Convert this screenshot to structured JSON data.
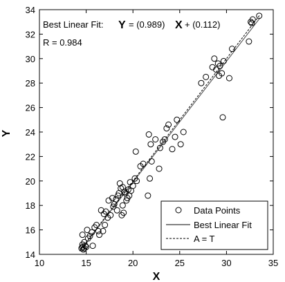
{
  "chart_data": {
    "type": "scatter",
    "xlabel": "X",
    "ylabel": "Y",
    "xlim": [
      10,
      35
    ],
    "ylim": [
      14,
      34
    ],
    "xticks": [
      "10",
      "15",
      "20",
      "25",
      "30",
      "35"
    ],
    "yticks": [
      "14",
      "16",
      "18",
      "20",
      "22",
      "24",
      "26",
      "28",
      "30",
      "32",
      "34"
    ],
    "annotation": {
      "fit_prefix": "Best Linear Fit:",
      "fit_y": "Y",
      "fit_eq1": "= (0.989)",
      "fit_x": "X",
      "fit_eq2": "+ (0.112)",
      "r_text": "R = 0.984"
    },
    "fit": {
      "slope": 0.989,
      "intercept": 0.112
    },
    "legend": {
      "position": "bottom-right",
      "entries": [
        "Data Points",
        "Best Linear Fit",
        "A = T"
      ]
    },
    "series": [
      {
        "name": "Data Points",
        "points": [
          [
            14.5,
            14.5
          ],
          [
            14.6,
            14.6
          ],
          [
            14.7,
            14.4
          ],
          [
            14.8,
            14.5
          ],
          [
            14.6,
            14.8
          ],
          [
            14.9,
            14.7
          ],
          [
            15.0,
            14.6
          ],
          [
            14.8,
            15.0
          ],
          [
            15.2,
            15.3
          ],
          [
            14.6,
            15.6
          ],
          [
            15.4,
            15.5
          ],
          [
            15.1,
            16.0
          ],
          [
            15.6,
            15.8
          ],
          [
            15.9,
            16.2
          ],
          [
            16.1,
            16.4
          ],
          [
            16.3,
            15.9
          ],
          [
            15.7,
            14.7
          ],
          [
            16.8,
            15.9
          ],
          [
            17.0,
            16.4
          ],
          [
            16.9,
            17.3
          ],
          [
            17.1,
            17.5
          ],
          [
            17.3,
            17.0
          ],
          [
            17.6,
            17.2
          ],
          [
            17.9,
            17.9
          ],
          [
            18.0,
            18.1
          ],
          [
            18.2,
            18.5
          ],
          [
            17.8,
            18.6
          ],
          [
            18.4,
            18.8
          ],
          [
            18.5,
            19.0
          ],
          [
            18.7,
            19.4
          ],
          [
            18.6,
            19.8
          ],
          [
            18.9,
            19.5
          ],
          [
            19.1,
            19.1
          ],
          [
            19.3,
            18.4
          ],
          [
            19.5,
            19.3
          ],
          [
            19.6,
            18.8
          ],
          [
            19.8,
            19.2
          ],
          [
            20.0,
            19.6
          ],
          [
            20.2,
            20.2
          ],
          [
            20.4,
            20.0
          ],
          [
            19.4,
            18.6
          ],
          [
            18.3,
            17.6
          ],
          [
            18.8,
            17.2
          ],
          [
            18.9,
            18.0
          ],
          [
            19.0,
            17.4
          ],
          [
            19.2,
            19.0
          ],
          [
            19.7,
            19.9
          ],
          [
            20.3,
            22.4
          ],
          [
            20.8,
            21.2
          ],
          [
            21.1,
            21.4
          ],
          [
            21.6,
            18.8
          ],
          [
            21.8,
            20.2
          ],
          [
            22.0,
            21.6
          ],
          [
            21.9,
            23.0
          ],
          [
            21.7,
            23.8
          ],
          [
            22.4,
            23.4
          ],
          [
            22.9,
            22.7
          ],
          [
            23.2,
            23.2
          ],
          [
            23.4,
            23.4
          ],
          [
            23.6,
            24.3
          ],
          [
            23.8,
            24.6
          ],
          [
            24.2,
            22.6
          ],
          [
            24.5,
            23.6
          ],
          [
            24.7,
            25.0
          ],
          [
            25.1,
            23.0
          ],
          [
            25.4,
            24.0
          ],
          [
            27.3,
            28.0
          ],
          [
            27.8,
            28.5
          ],
          [
            28.5,
            29.3
          ],
          [
            28.7,
            30.0
          ],
          [
            28.9,
            29.1
          ],
          [
            29.1,
            29.6
          ],
          [
            29.3,
            29.4
          ],
          [
            29.5,
            28.8
          ],
          [
            29.2,
            28.6
          ],
          [
            29.7,
            29.8
          ],
          [
            29.6,
            25.2
          ],
          [
            30.3,
            28.4
          ],
          [
            30.6,
            30.8
          ],
          [
            32.4,
            31.4
          ],
          [
            32.6,
            33.0
          ],
          [
            32.8,
            33.2
          ],
          [
            32.7,
            32.9
          ],
          [
            33.5,
            33.5
          ],
          [
            22.8,
            21.0
          ],
          [
            16.6,
            17.6
          ],
          [
            17.4,
            18.4
          ],
          [
            16.4,
            15.6
          ]
        ]
      }
    ]
  }
}
